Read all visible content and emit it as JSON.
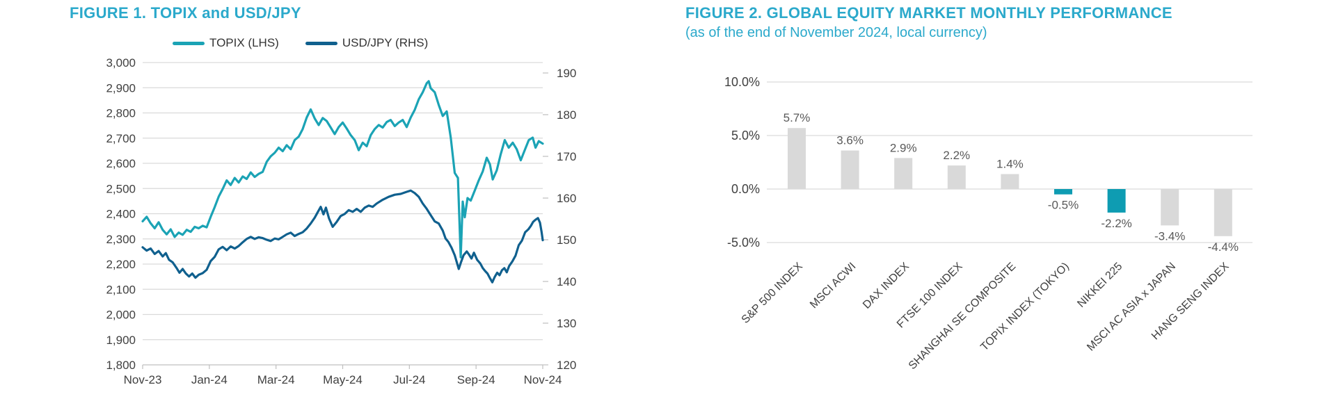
{
  "colors": {
    "accent": "#2BA9CB",
    "axis_text": "#404040",
    "legend_text": "#333333",
    "grid": "#D9D9D9",
    "axis_line": "#BFBFBF",
    "line_teal": "#1BA3B5",
    "line_blue": "#10608E",
    "bar_gray": "#D9D9D9",
    "bar_teal": "#0E9CB2",
    "value_label": "#595959"
  },
  "chart_data": [
    {
      "type": "line",
      "title": "FIGURE 1. TOPIX and USD/JPY",
      "legend_position": "top",
      "grid": true,
      "x_tick_labels": [
        "Nov-23",
        "Jan-24",
        "Mar-24",
        "May-24",
        "Jul-24",
        "Sep-24",
        "Nov-24"
      ],
      "left_axis": {
        "min": 1800,
        "max": 3000,
        "step": 100,
        "tick_labels": [
          "3,000",
          "2,900",
          "2,800",
          "2,700",
          "2,600",
          "2,500",
          "2,400",
          "2,300",
          "2,200",
          "2,100",
          "2,000",
          "1,900",
          "1,800"
        ]
      },
      "right_axis": {
        "min": 120,
        "max": 190,
        "step": 10,
        "tick_labels": [
          "190",
          "180",
          "170",
          "160",
          "150",
          "140",
          "130",
          "120"
        ]
      },
      "series": [
        {
          "name": "TOPIX (LHS)",
          "axis": "left",
          "color": "#1BA3B5",
          "points": [
            [
              0,
              2370
            ],
            [
              0.01,
              2388
            ],
            [
              0.02,
              2362
            ],
            [
              0.03,
              2342
            ],
            [
              0.04,
              2366
            ],
            [
              0.05,
              2336
            ],
            [
              0.06,
              2318
            ],
            [
              0.07,
              2338
            ],
            [
              0.08,
              2308
            ],
            [
              0.09,
              2325
            ],
            [
              0.1,
              2316
            ],
            [
              0.11,
              2336
            ],
            [
              0.12,
              2328
            ],
            [
              0.13,
              2348
            ],
            [
              0.14,
              2342
            ],
            [
              0.15,
              2352
            ],
            [
              0.16,
              2346
            ],
            [
              0.17,
              2388
            ],
            [
              0.18,
              2426
            ],
            [
              0.19,
              2468
            ],
            [
              0.2,
              2498
            ],
            [
              0.21,
              2532
            ],
            [
              0.22,
              2514
            ],
            [
              0.23,
              2542
            ],
            [
              0.24,
              2524
            ],
            [
              0.25,
              2548
            ],
            [
              0.26,
              2538
            ],
            [
              0.27,
              2564
            ],
            [
              0.28,
              2546
            ],
            [
              0.29,
              2558
            ],
            [
              0.3,
              2566
            ],
            [
              0.31,
              2606
            ],
            [
              0.32,
              2628
            ],
            [
              0.33,
              2642
            ],
            [
              0.34,
              2662
            ],
            [
              0.35,
              2648
            ],
            [
              0.36,
              2672
            ],
            [
              0.37,
              2656
            ],
            [
              0.38,
              2692
            ],
            [
              0.39,
              2706
            ],
            [
              0.4,
              2736
            ],
            [
              0.41,
              2782
            ],
            [
              0.42,
              2814
            ],
            [
              0.43,
              2778
            ],
            [
              0.44,
              2752
            ],
            [
              0.45,
              2780
            ],
            [
              0.46,
              2768
            ],
            [
              0.47,
              2742
            ],
            [
              0.48,
              2716
            ],
            [
              0.49,
              2744
            ],
            [
              0.5,
              2762
            ],
            [
              0.51,
              2738
            ],
            [
              0.52,
              2712
            ],
            [
              0.53,
              2692
            ],
            [
              0.54,
              2652
            ],
            [
              0.55,
              2682
            ],
            [
              0.56,
              2668
            ],
            [
              0.57,
              2712
            ],
            [
              0.58,
              2736
            ],
            [
              0.59,
              2752
            ],
            [
              0.6,
              2742
            ],
            [
              0.61,
              2764
            ],
            [
              0.62,
              2772
            ],
            [
              0.63,
              2748
            ],
            [
              0.64,
              2762
            ],
            [
              0.65,
              2772
            ],
            [
              0.66,
              2744
            ],
            [
              0.67,
              2782
            ],
            [
              0.68,
              2812
            ],
            [
              0.69,
              2854
            ],
            [
              0.7,
              2882
            ],
            [
              0.71,
              2918
            ],
            [
              0.715,
              2926
            ],
            [
              0.72,
              2898
            ],
            [
              0.73,
              2882
            ],
            [
              0.74,
              2832
            ],
            [
              0.75,
              2788
            ],
            [
              0.76,
              2806
            ],
            [
              0.77,
              2702
            ],
            [
              0.78,
              2562
            ],
            [
              0.788,
              2542
            ],
            [
              0.795,
              2227
            ],
            [
              0.8,
              2448
            ],
            [
              0.805,
              2386
            ],
            [
              0.812,
              2462
            ],
            [
              0.82,
              2452
            ],
            [
              0.83,
              2492
            ],
            [
              0.84,
              2532
            ],
            [
              0.85,
              2568
            ],
            [
              0.86,
              2622
            ],
            [
              0.868,
              2596
            ],
            [
              0.875,
              2536
            ],
            [
              0.885,
              2572
            ],
            [
              0.895,
              2636
            ],
            [
              0.905,
              2692
            ],
            [
              0.915,
              2662
            ],
            [
              0.925,
              2682
            ],
            [
              0.935,
              2656
            ],
            [
              0.945,
              2612
            ],
            [
              0.955,
              2652
            ],
            [
              0.965,
              2692
            ],
            [
              0.975,
              2702
            ],
            [
              0.982,
              2662
            ],
            [
              0.99,
              2688
            ],
            [
              1,
              2678
            ]
          ]
        },
        {
          "name": "USD/JPY (RHS)",
          "axis": "right",
          "color": "#10608E",
          "points": [
            [
              0,
              148.2
            ],
            [
              0.01,
              147.4
            ],
            [
              0.02,
              147.9
            ],
            [
              0.03,
              146.6
            ],
            [
              0.04,
              147.3
            ],
            [
              0.05,
              146.0
            ],
            [
              0.058,
              146.8
            ],
            [
              0.066,
              145.2
            ],
            [
              0.075,
              144.6
            ],
            [
              0.085,
              143.2
            ],
            [
              0.092,
              142.1
            ],
            [
              0.1,
              143.0
            ],
            [
              0.108,
              141.9
            ],
            [
              0.116,
              141.2
            ],
            [
              0.124,
              141.9
            ],
            [
              0.132,
              140.9
            ],
            [
              0.14,
              141.6
            ],
            [
              0.15,
              142.0
            ],
            [
              0.16,
              142.8
            ],
            [
              0.17,
              144.9
            ],
            [
              0.18,
              145.9
            ],
            [
              0.19,
              147.7
            ],
            [
              0.2,
              148.3
            ],
            [
              0.21,
              147.5
            ],
            [
              0.22,
              148.4
            ],
            [
              0.23,
              147.9
            ],
            [
              0.24,
              148.5
            ],
            [
              0.25,
              149.4
            ],
            [
              0.26,
              150.2
            ],
            [
              0.27,
              150.7
            ],
            [
              0.28,
              150.2
            ],
            [
              0.29,
              150.6
            ],
            [
              0.3,
              150.4
            ],
            [
              0.31,
              150.0
            ],
            [
              0.32,
              149.7
            ],
            [
              0.33,
              150.3
            ],
            [
              0.34,
              150.1
            ],
            [
              0.35,
              150.7
            ],
            [
              0.36,
              151.3
            ],
            [
              0.37,
              151.7
            ],
            [
              0.38,
              150.9
            ],
            [
              0.39,
              151.4
            ],
            [
              0.4,
              151.8
            ],
            [
              0.41,
              152.7
            ],
            [
              0.42,
              153.9
            ],
            [
              0.43,
              155.3
            ],
            [
              0.438,
              156.7
            ],
            [
              0.445,
              157.9
            ],
            [
              0.452,
              156.1
            ],
            [
              0.458,
              157.7
            ],
            [
              0.466,
              155.1
            ],
            [
              0.475,
              153.1
            ],
            [
              0.485,
              154.3
            ],
            [
              0.495,
              155.7
            ],
            [
              0.505,
              156.2
            ],
            [
              0.515,
              157.1
            ],
            [
              0.525,
              156.7
            ],
            [
              0.535,
              157.4
            ],
            [
              0.545,
              156.7
            ],
            [
              0.555,
              157.7
            ],
            [
              0.565,
              158.2
            ],
            [
              0.575,
              157.9
            ],
            [
              0.585,
              158.7
            ],
            [
              0.6,
              159.6
            ],
            [
              0.615,
              160.3
            ],
            [
              0.63,
              160.8
            ],
            [
              0.645,
              161.0
            ],
            [
              0.66,
              161.5
            ],
            [
              0.67,
              161.8
            ],
            [
              0.68,
              161.2
            ],
            [
              0.69,
              160.3
            ],
            [
              0.7,
              158.7
            ],
            [
              0.71,
              157.4
            ],
            [
              0.72,
              155.9
            ],
            [
              0.73,
              154.4
            ],
            [
              0.74,
              153.9
            ],
            [
              0.75,
              152.2
            ],
            [
              0.757,
              150.3
            ],
            [
              0.764,
              149.5
            ],
            [
              0.772,
              148.1
            ],
            [
              0.78,
              146.3
            ],
            [
              0.79,
              143.0
            ],
            [
              0.796,
              144.7
            ],
            [
              0.802,
              146.3
            ],
            [
              0.81,
              147.2
            ],
            [
              0.816,
              146.4
            ],
            [
              0.822,
              145.5
            ],
            [
              0.828,
              146.9
            ],
            [
              0.836,
              145.2
            ],
            [
              0.844,
              144.3
            ],
            [
              0.85,
              143.2
            ],
            [
              0.856,
              142.5
            ],
            [
              0.862,
              141.9
            ],
            [
              0.868,
              140.8
            ],
            [
              0.874,
              139.8
            ],
            [
              0.88,
              141.1
            ],
            [
              0.886,
              142.1
            ],
            [
              0.892,
              141.5
            ],
            [
              0.898,
              142.7
            ],
            [
              0.904,
              143.2
            ],
            [
              0.91,
              142.2
            ],
            [
              0.916,
              143.7
            ],
            [
              0.924,
              144.8
            ],
            [
              0.932,
              146.2
            ],
            [
              0.94,
              148.7
            ],
            [
              0.948,
              149.8
            ],
            [
              0.956,
              151.8
            ],
            [
              0.964,
              152.5
            ],
            [
              0.97,
              153.3
            ],
            [
              0.976,
              154.3
            ],
            [
              0.982,
              154.8
            ],
            [
              0.988,
              155.2
            ],
            [
              0.993,
              154.1
            ],
            [
              0.997,
              151.9
            ],
            [
              1,
              149.9
            ]
          ]
        }
      ]
    },
    {
      "type": "bar",
      "title": "FIGURE 2. GLOBAL EQUITY MARKET MONTHLY PERFORMANCE",
      "subtitle": "(as of the end of November 2024, local currency)",
      "categories": [
        "S&P 500 INDEX",
        "MSCI ACWI",
        "DAX INDEX",
        "FTSE 100 INDEX",
        "SHANGHAI SE COMPOSITE",
        "TOPIX INDEX (TOKYO)",
        "NIKKEI 225",
        "MSCI AC ASIA x JAPAN",
        "HANG SENG INDEX"
      ],
      "values": [
        5.7,
        3.6,
        2.9,
        2.2,
        1.4,
        -0.5,
        -2.2,
        -3.4,
        -4.4
      ],
      "value_labels": [
        "5.7%",
        "3.6%",
        "2.9%",
        "2.2%",
        "1.4%",
        "-0.5%",
        "-2.2%",
        "-3.4%",
        "-4.4%"
      ],
      "highlight_categories": [
        "TOPIX INDEX (TOKYO)",
        "NIKKEI 225"
      ],
      "bar_color_default": "#D9D9D9",
      "bar_color_highlight": "#0E9CB2",
      "y_tick_values": [
        10,
        5,
        0,
        -5
      ],
      "y_tick_labels": [
        "10.0%",
        "5.0%",
        "0.0%",
        "-5.0%"
      ],
      "ylim": [
        -5,
        10
      ],
      "grid": true
    }
  ]
}
